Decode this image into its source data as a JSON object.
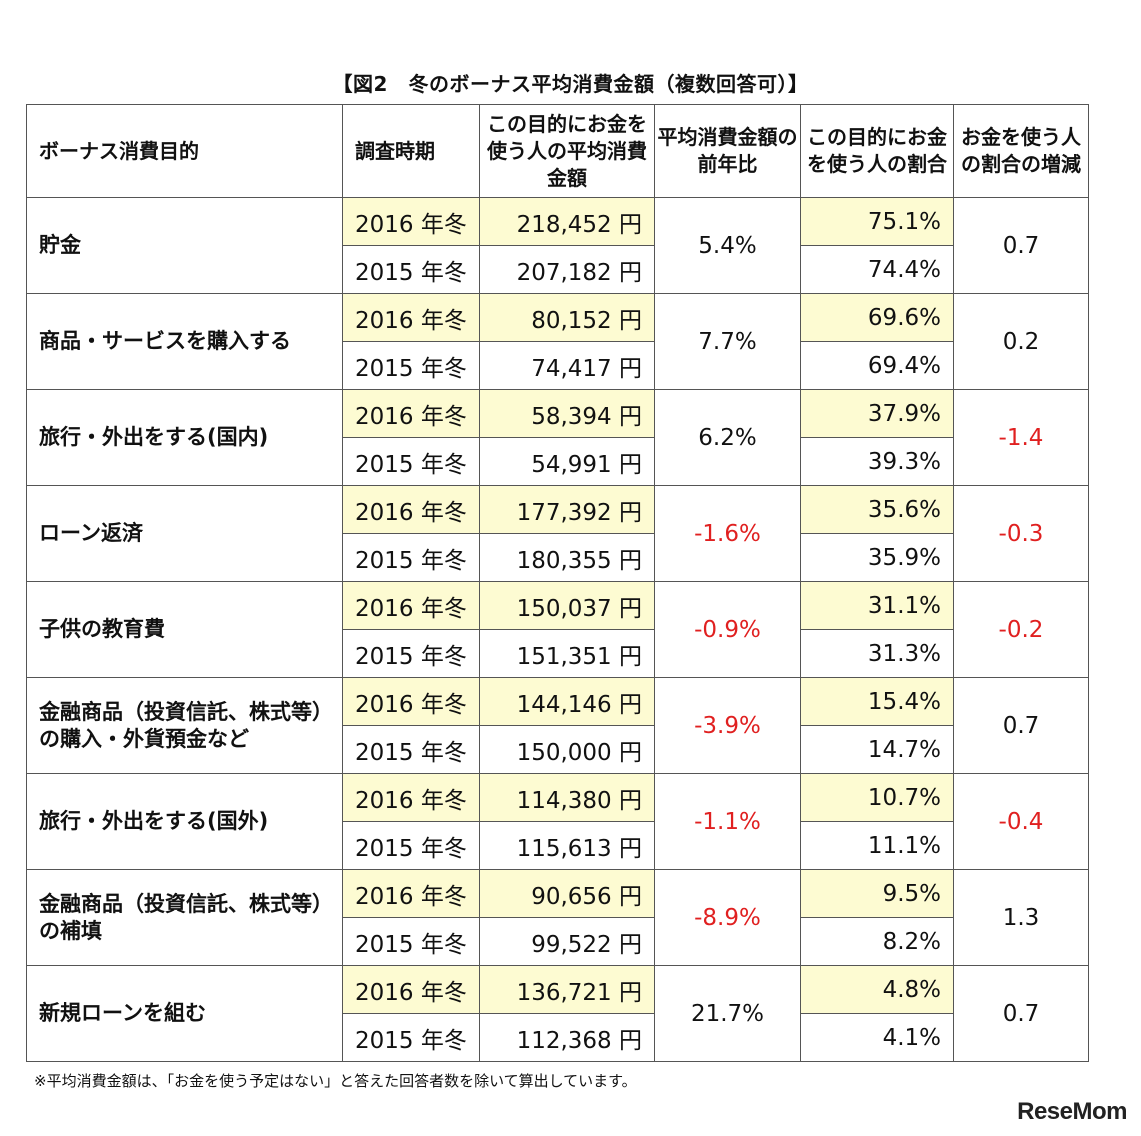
{
  "title": "【図2　冬のボーナス平均消費金額（複数回答可）】",
  "headers": {
    "purpose": "ボーナス消費目的",
    "period": "調査時期",
    "amount": "この目的にお金を使う人の平均消費金額",
    "yoy": "平均消費金額の前年比",
    "share": "この目的にお金を使う人の割合",
    "share_change": "お金を使う人の割合の増減"
  },
  "rows": [
    {
      "category": "貯金",
      "period_2016": "2016 年冬",
      "period_2015": "2015 年冬",
      "amount_2016": "218,452 円",
      "amount_2015": "207,182 円",
      "yoy": "5.4%",
      "share_2016": "75.1%",
      "share_2015": "74.4%",
      "change": "0.7"
    },
    {
      "category": "商品・サービスを購入する",
      "period_2016": "2016 年冬",
      "period_2015": "2015 年冬",
      "amount_2016": "80,152 円",
      "amount_2015": "74,417 円",
      "yoy": "7.7%",
      "share_2016": "69.6%",
      "share_2015": "69.4%",
      "change": "0.2"
    },
    {
      "category": "旅行・外出をする(国内)",
      "period_2016": "2016 年冬",
      "period_2015": "2015 年冬",
      "amount_2016": "58,394 円",
      "amount_2015": "54,991 円",
      "yoy": "6.2%",
      "share_2016": "37.9%",
      "share_2015": "39.3%",
      "change": "-1.4"
    },
    {
      "category": "ローン返済",
      "period_2016": "2016 年冬",
      "period_2015": "2015 年冬",
      "amount_2016": "177,392 円",
      "amount_2015": "180,355 円",
      "yoy": "-1.6%",
      "share_2016": "35.6%",
      "share_2015": "35.9%",
      "change": "-0.3"
    },
    {
      "category": "子供の教育費",
      "period_2016": "2016 年冬",
      "period_2015": "2015 年冬",
      "amount_2016": "150,037 円",
      "amount_2015": "151,351 円",
      "yoy": "-0.9%",
      "share_2016": "31.1%",
      "share_2015": "31.3%",
      "change": "-0.2"
    },
    {
      "category": "金融商品（投資信託、株式等）の購入・外貨預金など",
      "period_2016": "2016 年冬",
      "period_2015": "2015 年冬",
      "amount_2016": "144,146 円",
      "amount_2015": "150,000 円",
      "yoy": "-3.9%",
      "share_2016": "15.4%",
      "share_2015": "14.7%",
      "change": "0.7"
    },
    {
      "category": "旅行・外出をする(国外)",
      "period_2016": "2016 年冬",
      "period_2015": "2015 年冬",
      "amount_2016": "114,380 円",
      "amount_2015": "115,613 円",
      "yoy": "-1.1%",
      "share_2016": "10.7%",
      "share_2015": "11.1%",
      "change": "-0.4"
    },
    {
      "category": "金融商品（投資信託、株式等）の補填",
      "period_2016": "2016 年冬",
      "period_2015": "2015 年冬",
      "amount_2016": "90,656 円",
      "amount_2015": "99,522 円",
      "yoy": "-8.9%",
      "share_2016": "9.5%",
      "share_2015": "8.2%",
      "change": "1.3"
    },
    {
      "category": "新規ローンを組む",
      "period_2016": "2016 年冬",
      "period_2015": "2015 年冬",
      "amount_2016": "136,721 円",
      "amount_2015": "112,368 円",
      "yoy": "21.7%",
      "share_2016": "4.8%",
      "share_2015": "4.1%",
      "change": "0.7"
    }
  ],
  "note": "※平均消費金額は、「お金を使う予定はない」と答えた回答者数を除いて算出しています。",
  "logo": "ReseMom",
  "colors": {
    "highlight": "#fdfbd2",
    "negative": "#e02020",
    "border": "#555555"
  }
}
